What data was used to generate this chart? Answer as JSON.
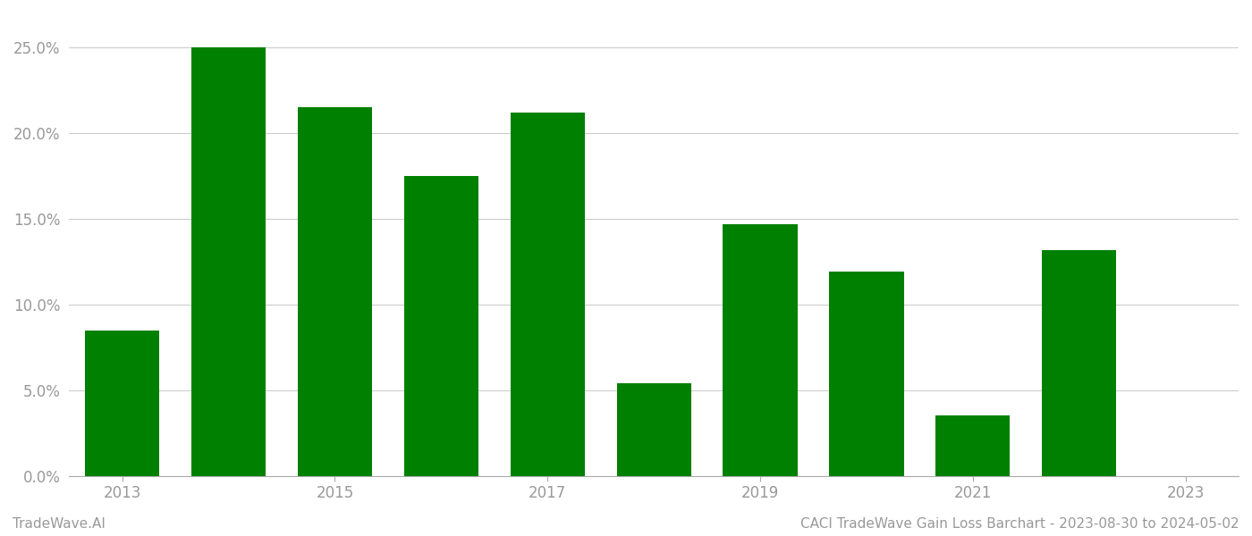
{
  "categories": [
    2013,
    2014,
    2015,
    2016,
    2017,
    2018,
    2019,
    2020,
    2021,
    2022,
    2023
  ],
  "values": [
    0.085,
    0.25,
    0.215,
    0.175,
    0.212,
    0.054,
    0.147,
    0.119,
    0.035,
    0.132,
    0.0
  ],
  "bar_color": "#008000",
  "background_color": "#ffffff",
  "grid_color": "#cccccc",
  "ylabel_ticks": [
    0.0,
    0.05,
    0.1,
    0.15,
    0.2,
    0.25
  ],
  "ylim": [
    0,
    0.27
  ],
  "xtick_labels": [
    2013,
    2015,
    2017,
    2019,
    2021,
    2023
  ],
  "footer_left": "TradeWave.AI",
  "footer_right": "CACI TradeWave Gain Loss Barchart - 2023-08-30 to 2024-05-02",
  "tick_label_color": "#999999",
  "footer_font_size": 11,
  "axis_font_size": 12,
  "bar_width": 0.7
}
